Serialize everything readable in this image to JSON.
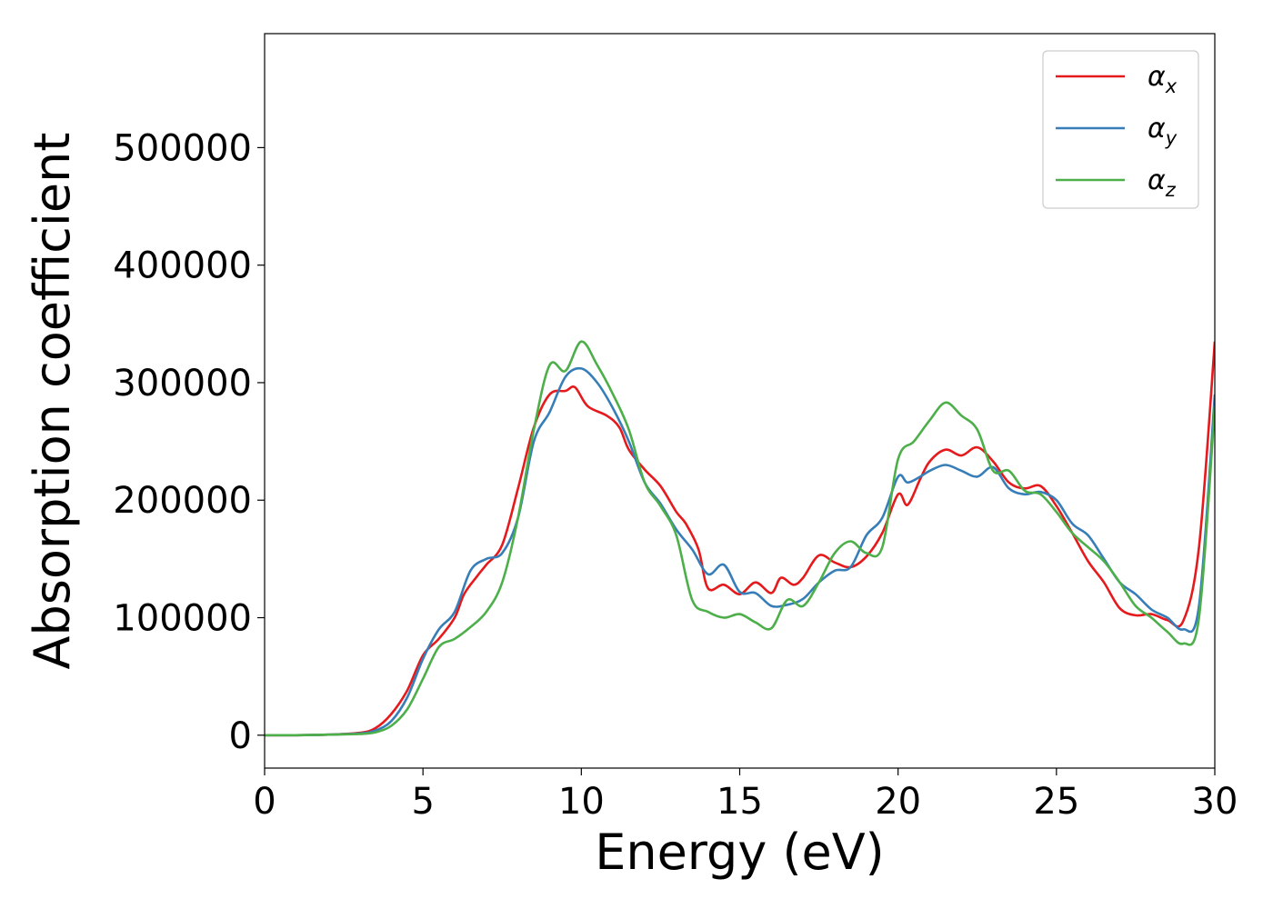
{
  "chart_data": {
    "type": "line",
    "title": "",
    "xlabel": "Energy (eV)",
    "ylabel": "Absorption coefficient",
    "xlim": [
      0,
      30
    ],
    "ylim": [
      -28000,
      597000
    ],
    "xticks": [
      0,
      5,
      10,
      15,
      20,
      25,
      30
    ],
    "xtick_labels": [
      "0",
      "5",
      "10",
      "15",
      "20",
      "25",
      "30"
    ],
    "yticks": [
      0,
      100000,
      200000,
      300000,
      400000,
      500000
    ],
    "ytick_labels": [
      "0",
      "100000",
      "200000",
      "300000",
      "400000",
      "500000"
    ],
    "grid": false,
    "legend_position": "top-right",
    "series": [
      {
        "name": "αx",
        "symbol": "α",
        "subscript": "x",
        "color": "#e41a1c",
        "x": [
          0,
          1,
          2,
          3,
          3.5,
          4,
          4.5,
          5,
          5.5,
          6,
          6.3,
          6.7,
          7,
          7.5,
          8,
          8.5,
          9,
          9.5,
          9.8,
          10.2,
          10.8,
          11.2,
          11.5,
          12,
          12.5,
          13,
          13.3,
          13.7,
          14,
          14.5,
          15,
          15.5,
          16,
          16.3,
          16.7,
          17,
          17.5,
          18,
          18.5,
          19,
          19.5,
          20,
          20.3,
          20.7,
          21,
          21.5,
          22,
          22.5,
          23,
          23.5,
          24,
          24.5,
          25,
          25.5,
          26,
          26.5,
          27,
          27.5,
          28,
          28.5,
          29,
          29.5,
          30
        ],
        "y": [
          0,
          0,
          500,
          2000,
          6000,
          18000,
          38000,
          68000,
          82000,
          100000,
          120000,
          135000,
          145000,
          162000,
          210000,
          262000,
          290000,
          293000,
          296000,
          280000,
          272000,
          262000,
          243000,
          226000,
          212000,
          190000,
          180000,
          158000,
          125000,
          128000,
          120000,
          130000,
          121000,
          134000,
          128000,
          134000,
          153000,
          147000,
          143000,
          152000,
          172000,
          205000,
          196000,
          218000,
          233000,
          243000,
          238000,
          245000,
          233000,
          215000,
          210000,
          212000,
          195000,
          172000,
          148000,
          130000,
          108000,
          102000,
          103000,
          98000,
          97000,
          160000,
          335000
        ]
      },
      {
        "name": "αy",
        "symbol": "α",
        "subscript": "y",
        "color": "#377eb8",
        "x": [
          0,
          1,
          2,
          3,
          3.5,
          4,
          4.5,
          5,
          5.5,
          6,
          6.5,
          7,
          7.5,
          8,
          8.5,
          9,
          9.5,
          10,
          10.5,
          11,
          11.5,
          12,
          12.5,
          13,
          13.5,
          14,
          14.5,
          15,
          15.5,
          16,
          16.5,
          17,
          17.5,
          18,
          18.5,
          19,
          19.5,
          20,
          20.3,
          20.7,
          21,
          21.5,
          22,
          22.5,
          23,
          23.5,
          24,
          24.5,
          25,
          25.5,
          26,
          26.5,
          27,
          27.5,
          28,
          28.5,
          29,
          29.5,
          30
        ],
        "y": [
          0,
          0,
          500,
          1500,
          4000,
          12000,
          32000,
          65000,
          90000,
          105000,
          140000,
          150000,
          155000,
          185000,
          250000,
          275000,
          305000,
          312000,
          300000,
          278000,
          250000,
          215000,
          197000,
          175000,
          158000,
          137000,
          145000,
          122000,
          121000,
          110000,
          111000,
          116000,
          130000,
          140000,
          143000,
          170000,
          185000,
          220000,
          215000,
          220000,
          225000,
          230000,
          225000,
          220000,
          228000,
          210000,
          205000,
          207000,
          200000,
          180000,
          170000,
          150000,
          130000,
          120000,
          107000,
          100000,
          90000,
          110000,
          290000
        ]
      },
      {
        "name": "αz",
        "symbol": "α",
        "subscript": "z",
        "color": "#4daf4a",
        "x": [
          0,
          1,
          2,
          3,
          3.5,
          4,
          4.5,
          5,
          5.5,
          6,
          6.5,
          7,
          7.5,
          8,
          8.5,
          9,
          9.5,
          10,
          10.5,
          11,
          11.5,
          12,
          12.5,
          13,
          13.5,
          14,
          14.5,
          15,
          15.5,
          16,
          16.5,
          17,
          17.5,
          18,
          18.5,
          19,
          19.5,
          20,
          20.5,
          21,
          21.5,
          22,
          22.5,
          23,
          23.5,
          24,
          24.5,
          25,
          25.5,
          26,
          26.5,
          27,
          27.5,
          28,
          28.5,
          29,
          29.5,
          30
        ],
        "y": [
          0,
          0,
          500,
          1000,
          2500,
          8000,
          22000,
          48000,
          75000,
          82000,
          92000,
          105000,
          130000,
          185000,
          260000,
          315000,
          310000,
          335000,
          315000,
          290000,
          260000,
          215000,
          195000,
          170000,
          115000,
          105000,
          100000,
          103000,
          96000,
          91000,
          115000,
          110000,
          130000,
          155000,
          165000,
          155000,
          160000,
          235000,
          250000,
          268000,
          283000,
          272000,
          260000,
          225000,
          225000,
          208000,
          205000,
          190000,
          172000,
          160000,
          148000,
          130000,
          110000,
          100000,
          88000,
          78000,
          100000,
          280000
        ]
      }
    ]
  }
}
